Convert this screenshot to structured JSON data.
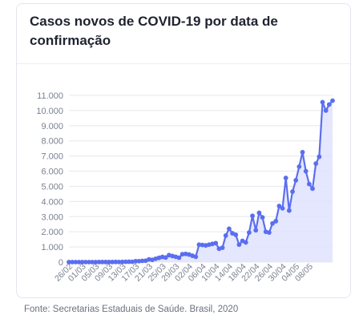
{
  "title": "Casos novos de COVID-19 por data de confirmação",
  "source": "Fonte: Secretarias Estaduais de Saúde. Brasil, 2020",
  "colors": {
    "line": "#5b6ef0",
    "area": "#dfe3fd",
    "grid": "#e6e8ee",
    "tick": "#7a8090"
  },
  "chart_data": {
    "type": "area",
    "title": "Casos novos de COVID-19 por data de confirmação",
    "xlabel": "",
    "ylabel": "",
    "ylim": [
      0,
      11000
    ],
    "yticks": [
      "0",
      "1.000",
      "2.000",
      "3.000",
      "4.000",
      "5.000",
      "6.000",
      "7.000",
      "8.000",
      "9.000",
      "10.000",
      "11.000"
    ],
    "xtick_labels": [
      "26/02",
      "01/03",
      "05/03",
      "09/03",
      "13/03",
      "17/03",
      "21/03",
      "25/03",
      "29/03",
      "02/04",
      "06/04",
      "10/04",
      "14/04",
      "18/04",
      "22/04",
      "26/04",
      "30/04",
      "04/05",
      "08/05"
    ],
    "grid": true,
    "x_start": "26/02",
    "x_end": "09/05",
    "series": [
      {
        "values": [
          1,
          0,
          0,
          0,
          1,
          0,
          0,
          0,
          0,
          3,
          5,
          2,
          4,
          5,
          10,
          8,
          13,
          18,
          25,
          20,
          55,
          60,
          80,
          90,
          175,
          150,
          220,
          280,
          340,
          300,
          460,
          400,
          350,
          290,
          520,
          540,
          500,
          420,
          350,
          1150,
          1130,
          1100,
          1150,
          1200,
          1250,
          880,
          950,
          1750,
          2200,
          1900,
          1800,
          1150,
          1400,
          1300,
          1950,
          3050,
          2100,
          3250,
          2950,
          2000,
          1950,
          2550,
          2700,
          3700,
          3550,
          5550,
          3400,
          4650,
          5400,
          6300,
          7250,
          6000,
          5150,
          4850,
          6500,
          6950,
          10550,
          10000,
          10400,
          10650
        ]
      }
    ]
  }
}
